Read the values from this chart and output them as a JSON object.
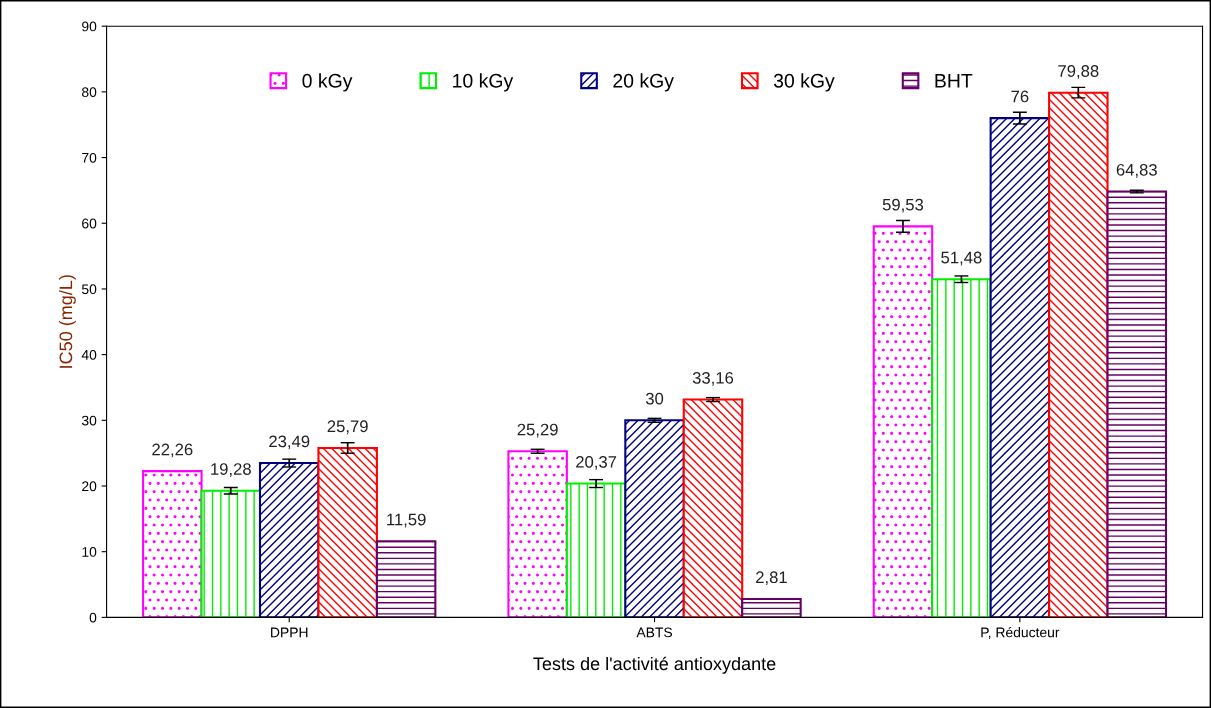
{
  "chart_data": {
    "type": "bar",
    "xlabel": "Tests de l'activité antioxydante",
    "ylabel": "IC50 (mg/L)",
    "categories": [
      "DPPH",
      "ABTS",
      "P, Réducteur"
    ],
    "series": [
      {
        "name": "0 kGy",
        "color": "#ff00ff",
        "values": [
          22.26,
          25.29,
          59.53
        ],
        "value_labels": [
          "22,26",
          "25,29",
          "59,53"
        ],
        "errors": [
          null,
          0.3,
          0.9
        ]
      },
      {
        "name": "10 kGy",
        "color": "#00ee00",
        "values": [
          19.28,
          20.37,
          51.48
        ],
        "value_labels": [
          "19,28",
          "20,37",
          "51,48"
        ],
        "errors": [
          0.5,
          0.6,
          0.5
        ]
      },
      {
        "name": "20 kGy",
        "color": "#000080",
        "values": [
          23.49,
          30,
          76
        ],
        "value_labels": [
          "23,49",
          "30",
          "76"
        ],
        "errors": [
          0.6,
          0.3,
          0.9
        ]
      },
      {
        "name": "30 kGy",
        "color": "#ff0000",
        "values": [
          25.79,
          33.16,
          79.88
        ],
        "value_labels": [
          "25,79",
          "33,16",
          "79,88"
        ],
        "errors": [
          0.8,
          0.3,
          0.8
        ]
      },
      {
        "name": "BHT",
        "color": "#660066",
        "values": [
          11.59,
          2.81,
          64.83
        ],
        "value_labels": [
          "11,59",
          "2,81",
          "64,83"
        ],
        "errors": [
          null,
          null,
          0.2
        ]
      }
    ],
    "ylim": [
      0,
      90
    ],
    "yticks": [
      0,
      10,
      20,
      30,
      40,
      50,
      60,
      70,
      80,
      90
    ],
    "legend": "top",
    "grid": false
  }
}
